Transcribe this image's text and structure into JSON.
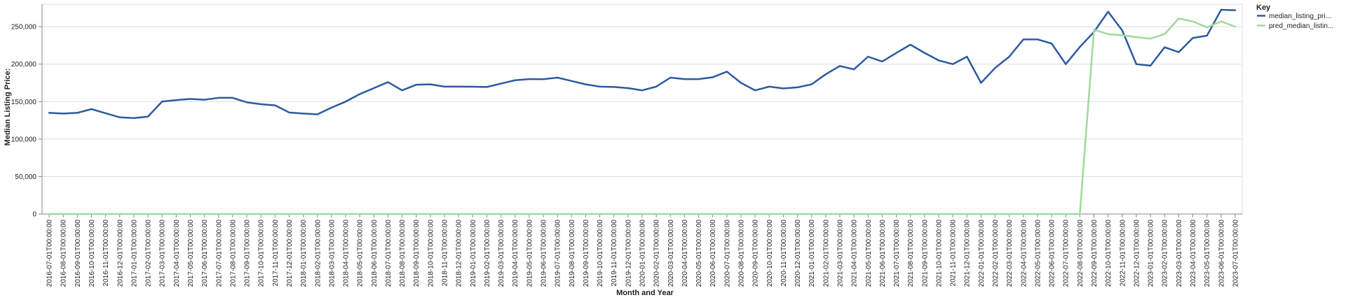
{
  "chart_data": {
    "type": "line",
    "xlabel": "Month and Year",
    "ylabel": "Median Listing Price:",
    "ylim": [
      0,
      280000
    ],
    "yticks": [
      0,
      50000,
      100000,
      150000,
      200000,
      250000
    ],
    "ytick_labels": [
      "0",
      "50,000",
      "100,000",
      "150,000",
      "200,000",
      "250,000"
    ],
    "grid": true,
    "legend": {
      "title": "Key",
      "placement": "top-right"
    },
    "x": [
      "2016-07-01T00:00:00",
      "2016-08-01T00:00:00",
      "2016-09-01T00:00:00",
      "2016-10-01T00:00:00",
      "2016-11-01T00:00:00",
      "2016-12-01T00:00:00",
      "2017-01-01T00:00:00",
      "2017-02-01T00:00:00",
      "2017-03-01T00:00:00",
      "2017-04-01T00:00:00",
      "2017-05-01T00:00:00",
      "2017-06-01T00:00:00",
      "2017-07-01T00:00:00",
      "2017-08-01T00:00:00",
      "2017-09-01T00:00:00",
      "2017-10-01T00:00:00",
      "2017-11-01T00:00:00",
      "2017-12-01T00:00:00",
      "2018-01-01T00:00:00",
      "2018-02-01T00:00:00",
      "2018-03-01T00:00:00",
      "2018-04-01T00:00:00",
      "2018-05-01T00:00:00",
      "2018-06-01T00:00:00",
      "2018-07-01T00:00:00",
      "2018-08-01T00:00:00",
      "2018-09-01T00:00:00",
      "2018-10-01T00:00:00",
      "2018-11-01T00:00:00",
      "2018-12-01T00:00:00",
      "2019-01-01T00:00:00",
      "2019-02-01T00:00:00",
      "2019-03-01T00:00:00",
      "2019-04-01T00:00:00",
      "2019-05-01T00:00:00",
      "2019-06-01T00:00:00",
      "2019-07-01T00:00:00",
      "2019-08-01T00:00:00",
      "2019-09-01T00:00:00",
      "2019-10-01T00:00:00",
      "2019-11-01T00:00:00",
      "2019-12-01T00:00:00",
      "2020-01-01T00:00:00",
      "2020-02-01T00:00:00",
      "2020-03-01T00:00:00",
      "2020-04-01T00:00:00",
      "2020-05-01T00:00:00",
      "2020-06-01T00:00:00",
      "2020-07-01T00:00:00",
      "2020-08-01T00:00:00",
      "2020-09-01T00:00:00",
      "2020-10-01T00:00:00",
      "2020-11-01T00:00:00",
      "2020-12-01T00:00:00",
      "2021-01-01T00:00:00",
      "2021-02-01T00:00:00",
      "2021-03-01T00:00:00",
      "2021-04-01T00:00:00",
      "2021-05-01T00:00:00",
      "2021-06-01T00:00:00",
      "2021-07-01T00:00:00",
      "2021-08-01T00:00:00",
      "2021-09-01T00:00:00",
      "2021-10-01T00:00:00",
      "2021-11-01T00:00:00",
      "2021-12-01T00:00:00",
      "2022-01-01T00:00:00",
      "2022-02-01T00:00:00",
      "2022-03-01T00:00:00",
      "2022-04-01T00:00:00",
      "2022-05-01T00:00:00",
      "2022-06-01T00:00:00",
      "2022-07-01T00:00:00",
      "2022-08-01T00:00:00",
      "2022-09-01T00:00:00",
      "2022-10-01T00:00:00",
      "2022-11-01T00:00:00",
      "2022-12-01T00:00:00",
      "2023-01-01T00:00:00",
      "2023-02-01T00:00:00",
      "2023-03-01T00:00:00",
      "2023-04-01T00:00:00",
      "2023-05-01T00:00:00",
      "2023-06-01T00:00:00",
      "2023-07-01T00:00:00"
    ],
    "series": [
      {
        "name": "median_listing_pri...",
        "color": "#2c5aa0",
        "values": [
          135000,
          134000,
          135000,
          140000,
          134500,
          129000,
          128000,
          130000,
          150000,
          152000,
          153500,
          152500,
          155000,
          155000,
          149000,
          146500,
          145000,
          135500,
          134000,
          133000,
          142000,
          150000,
          160000,
          168000,
          176000,
          165000,
          172500,
          173000,
          170000,
          170000,
          169900,
          169500,
          174000,
          178500,
          180000,
          179900,
          182000,
          177500,
          173000,
          170000,
          169500,
          168000,
          165000,
          170000,
          182000,
          180000,
          180000,
          182500,
          190000,
          175000,
          165000,
          170000,
          167500,
          169000,
          173000,
          186500,
          197500,
          193000,
          210000,
          203500,
          215000,
          226000,
          215000,
          205000,
          200000,
          210000,
          175000,
          195000,
          210000,
          233000,
          233000,
          227500,
          200000,
          223000,
          243000,
          270000,
          245000,
          200000,
          198000,
          222500,
          216000,
          235000,
          238000,
          272500,
          272000
        ]
      },
      {
        "name": "pred_median_listin...",
        "color": "#a1d99b",
        "values": [
          0,
          0,
          0,
          0,
          0,
          0,
          0,
          0,
          0,
          0,
          0,
          0,
          0,
          0,
          0,
          0,
          0,
          0,
          0,
          0,
          0,
          0,
          0,
          0,
          0,
          0,
          0,
          0,
          0,
          0,
          0,
          0,
          0,
          0,
          0,
          0,
          0,
          0,
          0,
          0,
          0,
          0,
          0,
          0,
          0,
          0,
          0,
          0,
          0,
          0,
          0,
          0,
          0,
          0,
          0,
          0,
          0,
          0,
          0,
          0,
          0,
          0,
          0,
          0,
          0,
          0,
          0,
          0,
          0,
          0,
          0,
          0,
          0,
          0,
          246000,
          240000,
          238500,
          236000,
          234000,
          240000,
          261000,
          257000,
          249000,
          257000,
          250000
        ]
      }
    ]
  }
}
